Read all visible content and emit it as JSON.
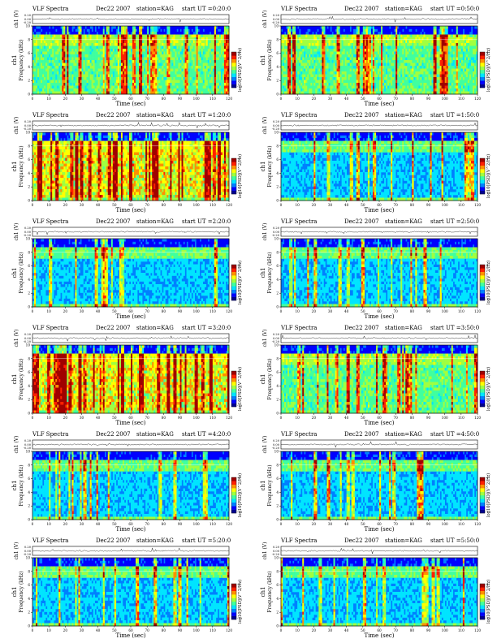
{
  "chart_data": [
    {
      "type": "heatmap",
      "title": "VLF Spectra",
      "date": "Dec22 2007",
      "station": "station=KAG",
      "start_ut": "start UT =0:20:0",
      "top_ylabel": "ch1 (V)",
      "top_yticks": [
        "0.20",
        "0.00",
        "-0.20"
      ],
      "ylabel": "Frequency (kHz)",
      "ylabel_prefix": "ch1",
      "yticks": [
        "0",
        "2",
        "4",
        "6",
        "8",
        "10"
      ],
      "ylim": [
        0,
        10
      ],
      "xlabel": "Time (sec)",
      "xticks": [
        "0",
        "10",
        "20",
        "30",
        "40",
        "50",
        "60",
        "70",
        "80",
        "90",
        "100",
        "110",
        "120"
      ],
      "xlim": [
        0,
        120
      ],
      "colorbar_label": "log10[PSD](V^2/Hz)",
      "colorbar_ticks": [
        "-1",
        "-7"
      ],
      "activity": "medium"
    },
    {
      "type": "heatmap",
      "title": "VLF Spectra",
      "date": "Dec22 2007",
      "station": "station=KAG",
      "start_ut": "start UT =0:50:0",
      "top_ylabel": "ch1 (V)",
      "top_yticks": [
        "0.20",
        "0.00",
        "-0.20"
      ],
      "ylabel": "Frequency (kHz)",
      "ylabel_prefix": "ch1",
      "yticks": [
        "0",
        "2",
        "4",
        "6",
        "8",
        "10"
      ],
      "ylim": [
        0,
        10
      ],
      "xlabel": "Time (sec)",
      "xticks": [
        "0",
        "10",
        "20",
        "30",
        "40",
        "50",
        "60",
        "70",
        "80",
        "90",
        "100",
        "110",
        "120"
      ],
      "xlim": [
        0,
        120
      ],
      "colorbar_label": "log10[PSD](V^2/Hz)",
      "colorbar_ticks": [
        "-1",
        "-7"
      ],
      "activity": "medium"
    },
    {
      "type": "heatmap",
      "title": "VLF Spectra",
      "date": "Dec22 2007",
      "station": "station=KAG",
      "start_ut": "start UT =1:20:0",
      "top_ylabel": "ch1 (V)",
      "top_yticks": [
        "0.20",
        "0.00",
        "-0.20"
      ],
      "ylabel": "Frequency (kHz)",
      "ylabel_prefix": "ch1",
      "yticks": [
        "0",
        "2",
        "4",
        "6",
        "8",
        "10"
      ],
      "ylim": [
        0,
        10
      ],
      "xlabel": "Time (sec)",
      "xticks": [
        "0",
        "10",
        "20",
        "30",
        "40",
        "50",
        "60",
        "70",
        "80",
        "90",
        "100",
        "110",
        "120"
      ],
      "xlim": [
        0,
        120
      ],
      "colorbar_label": "log10[PSD](V^2/Hz)",
      "colorbar_ticks": [
        "-1",
        "-7"
      ],
      "activity": "high"
    },
    {
      "type": "heatmap",
      "title": "VLF Spectra",
      "date": "Dec22 2007",
      "station": "station=KAG",
      "start_ut": "start UT =1:50:0",
      "top_ylabel": "ch1 (V)",
      "top_yticks": [
        "0.20",
        "0.00",
        "-0.20"
      ],
      "ylabel": "Frequency (kHz)",
      "ylabel_prefix": "ch1",
      "yticks": [
        "0",
        "2",
        "4",
        "6",
        "8",
        "10"
      ],
      "ylim": [
        0,
        10
      ],
      "xlabel": "Time (sec)",
      "xticks": [
        "0",
        "10",
        "20",
        "30",
        "40",
        "50",
        "60",
        "70",
        "80",
        "90",
        "100",
        "110",
        "120"
      ],
      "xlim": [
        0,
        120
      ],
      "colorbar_label": "log10[PSD](V^2/Hz)",
      "colorbar_ticks": [
        "-1",
        "-7"
      ],
      "activity": "low"
    },
    {
      "type": "heatmap",
      "title": "VLF Spectra",
      "date": "Dec22 2007",
      "station": "station=KAG",
      "start_ut": "start UT =2:20:0",
      "top_ylabel": "ch1 (V)",
      "top_yticks": [
        "0.20",
        "0.00",
        "-0.20"
      ],
      "ylabel": "Frequency (kHz)",
      "ylabel_prefix": "ch1",
      "yticks": [
        "0",
        "2",
        "4",
        "6",
        "8",
        "10"
      ],
      "ylim": [
        0,
        10
      ],
      "xlabel": "Time (sec)",
      "xticks": [
        "0",
        "10",
        "20",
        "30",
        "40",
        "50",
        "60",
        "70",
        "80",
        "90",
        "100",
        "110",
        "120"
      ],
      "xlim": [
        0,
        120
      ],
      "colorbar_label": "log10[PSD](V^2/Hz)",
      "colorbar_ticks": [
        "-1",
        "-7"
      ],
      "activity": "low"
    },
    {
      "type": "heatmap",
      "title": "VLF Spectra",
      "date": "Dec22 2007",
      "station": "station=KAG",
      "start_ut": "start UT =2:50:0",
      "top_ylabel": "ch1 (V)",
      "top_yticks": [
        "0.20",
        "0.00",
        "-0.20"
      ],
      "ylabel": "Frequency (kHz)",
      "ylabel_prefix": "ch1",
      "yticks": [
        "0",
        "2",
        "4",
        "6",
        "8",
        "10"
      ],
      "ylim": [
        0,
        10
      ],
      "xlabel": "Time (sec)",
      "xticks": [
        "0",
        "10",
        "20",
        "30",
        "40",
        "50",
        "60",
        "70",
        "80",
        "90",
        "100",
        "110",
        "120"
      ],
      "xlim": [
        0,
        120
      ],
      "colorbar_label": "log10[PSD](V^2/Hz)",
      "colorbar_ticks": [
        "-1",
        "-7"
      ],
      "activity": "low"
    },
    {
      "type": "heatmap",
      "title": "VLF Spectra",
      "date": "Dec22 2007",
      "station": "station=KAG",
      "start_ut": "start UT =3:20:0",
      "top_ylabel": "ch1 (V)",
      "top_yticks": [
        "0.20",
        "0.00",
        "-0.20"
      ],
      "ylabel": "Frequency (kHz)",
      "ylabel_prefix": "ch1",
      "yticks": [
        "0",
        "2",
        "4",
        "6",
        "8",
        "10"
      ],
      "ylim": [
        0,
        10
      ],
      "xlabel": "Time (sec)",
      "xticks": [
        "0",
        "10",
        "20",
        "30",
        "40",
        "50",
        "60",
        "70",
        "80",
        "90",
        "100",
        "110",
        "120"
      ],
      "xlim": [
        0,
        120
      ],
      "colorbar_label": "log10[PSD](V^2/Hz)",
      "colorbar_ticks": [
        "-1",
        "-7"
      ],
      "activity": "high"
    },
    {
      "type": "heatmap",
      "title": "VLF Spectra",
      "date": "Dec22 2007",
      "station": "station=KAG",
      "start_ut": "start UT =3:50:0",
      "top_ylabel": "ch1 (V)",
      "top_yticks": [
        "0.20",
        "0.00",
        "-0.20"
      ],
      "ylabel": "Frequency (kHz)",
      "ylabel_prefix": "ch1",
      "yticks": [
        "0",
        "2",
        "4",
        "6",
        "8",
        "10"
      ],
      "ylim": [
        0,
        10
      ],
      "xlabel": "Time (sec)",
      "xticks": [
        "0",
        "10",
        "20",
        "30",
        "40",
        "50",
        "60",
        "70",
        "80",
        "90",
        "100",
        "110",
        "120"
      ],
      "xlim": [
        0,
        120
      ],
      "colorbar_label": "log10[PSD](V^2/Hz)",
      "colorbar_ticks": [
        "-1",
        "-7"
      ],
      "activity": "medium"
    },
    {
      "type": "heatmap",
      "title": "VLF Spectra",
      "date": "Dec22 2007",
      "station": "station=KAG",
      "start_ut": "start UT =4:20:0",
      "top_ylabel": "ch1 (V)",
      "top_yticks": [
        "0.20",
        "0.00",
        "-0.20"
      ],
      "ylabel": "Frequency (kHz)",
      "ylabel_prefix": "ch1",
      "yticks": [
        "0",
        "2",
        "4",
        "6",
        "8",
        "10"
      ],
      "ylim": [
        0,
        10
      ],
      "xlabel": "Time (sec)",
      "xticks": [
        "0",
        "10",
        "20",
        "30",
        "40",
        "50",
        "60",
        "70",
        "80",
        "90",
        "100",
        "110",
        "120"
      ],
      "xlim": [
        0,
        120
      ],
      "colorbar_label": "log10[PSD](V^2/Hz)",
      "colorbar_ticks": [
        "-1",
        "-7"
      ],
      "activity": "low"
    },
    {
      "type": "heatmap",
      "title": "VLF Spectra",
      "date": "Dec22 2007",
      "station": "station=KAG",
      "start_ut": "start UT =4:50:0",
      "top_ylabel": "ch1 (V)",
      "top_yticks": [
        "0.20",
        "0.00",
        "-0.20"
      ],
      "ylabel": "Frequency (kHz)",
      "ylabel_prefix": "ch1",
      "yticks": [
        "0",
        "2",
        "4",
        "6",
        "8",
        "10"
      ],
      "ylim": [
        0,
        10
      ],
      "xlabel": "Time (sec)",
      "xticks": [
        "0",
        "10",
        "20",
        "30",
        "40",
        "50",
        "60",
        "70",
        "80",
        "90",
        "100",
        "110",
        "120"
      ],
      "xlim": [
        0,
        120
      ],
      "colorbar_label": "log10[PSD](V^2/Hz)",
      "colorbar_ticks": [
        "-1",
        "-7"
      ],
      "activity": "low"
    },
    {
      "type": "heatmap",
      "title": "VLF Spectra",
      "date": "Dec22 2007",
      "station": "station=KAG",
      "start_ut": "start UT =5:20:0",
      "top_ylabel": "ch1 (V)",
      "top_yticks": [
        "0.20",
        "0.00",
        "-0.20"
      ],
      "ylabel": "Frequency (kHz)",
      "ylabel_prefix": "ch1",
      "yticks": [
        "0",
        "2",
        "4",
        "6",
        "8",
        "10"
      ],
      "ylim": [
        0,
        10
      ],
      "xlabel": "Time (sec)",
      "xticks": [
        "0",
        "10",
        "20",
        "30",
        "40",
        "50",
        "60",
        "70",
        "80",
        "90",
        "100",
        "110",
        "120"
      ],
      "xlim": [
        0,
        120
      ],
      "colorbar_label": "log10[PSD](V^2/Hz)",
      "colorbar_ticks": [
        "-1",
        "-7"
      ],
      "activity": "low"
    },
    {
      "type": "heatmap",
      "title": "VLF Spectra",
      "date": "Dec22 2007",
      "station": "station=KAG",
      "start_ut": "start UT =5:50:0",
      "top_ylabel": "ch1 (V)",
      "top_yticks": [
        "0.20",
        "0.00",
        "-0.20"
      ],
      "ylabel": "Frequency (kHz)",
      "ylabel_prefix": "ch1",
      "yticks": [
        "0",
        "2",
        "4",
        "6",
        "8",
        "10"
      ],
      "ylim": [
        0,
        10
      ],
      "xlabel": "Time (sec)",
      "xticks": [
        "0",
        "10",
        "20",
        "30",
        "40",
        "50",
        "60",
        "70",
        "80",
        "90",
        "100",
        "110",
        "120"
      ],
      "xlim": [
        0,
        120
      ],
      "colorbar_label": "log10[PSD](V^2/Hz)",
      "colorbar_ticks": [
        "-1",
        "-7"
      ],
      "activity": "low"
    }
  ],
  "colors": {
    "colormap": [
      "#00008f",
      "#0000ff",
      "#0080ff",
      "#00e5ff",
      "#40ff9f",
      "#a0ff40",
      "#ffff00",
      "#ff9000",
      "#ff2000",
      "#a00000"
    ]
  }
}
